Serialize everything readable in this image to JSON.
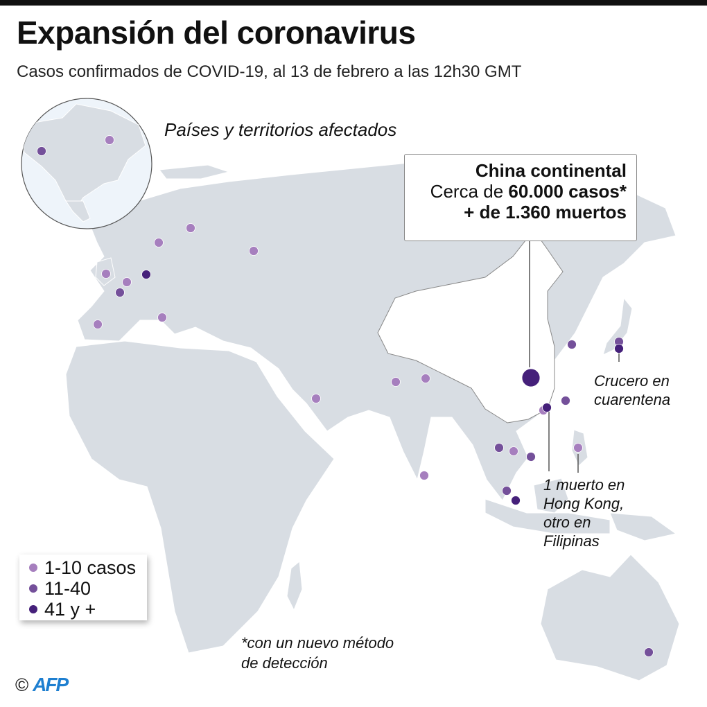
{
  "header": {
    "title": "Expansión del coronavirus",
    "subtitle": "Casos confirmados de COVID-19, al 13 de febrero a las 12h30 GMT"
  },
  "map": {
    "heading": "Países y territorios afectados",
    "colors": {
      "land": "#d8dde3",
      "china": "#ffffff",
      "water": "#ffffff",
      "inset_water": "#eef4fa",
      "light": "#a67fbe",
      "medium": "#74509a",
      "dark": "#45207a"
    },
    "callout": {
      "line1": "China continental",
      "line2_prefix": "Cerca de ",
      "line2_bold": "60.000 casos*",
      "line3": "+ de 1.360 muertos"
    },
    "annotations": {
      "cruise": [
        "Crucero en",
        "cuarentena"
      ],
      "deaths": [
        "1 muerto en",
        "Hong Kong,",
        "otro en",
        "Filipinas"
      ]
    }
  },
  "legend": {
    "items": [
      {
        "label": "1-10 casos",
        "level": "light"
      },
      {
        "label": "11-40",
        "level": "medium"
      },
      {
        "label": "41 y +",
        "level": "dark"
      }
    ]
  },
  "footnote": [
    "*con un nuevo método",
    "de detección"
  ],
  "credit": {
    "copyright": "©",
    "logo": "AFP"
  }
}
